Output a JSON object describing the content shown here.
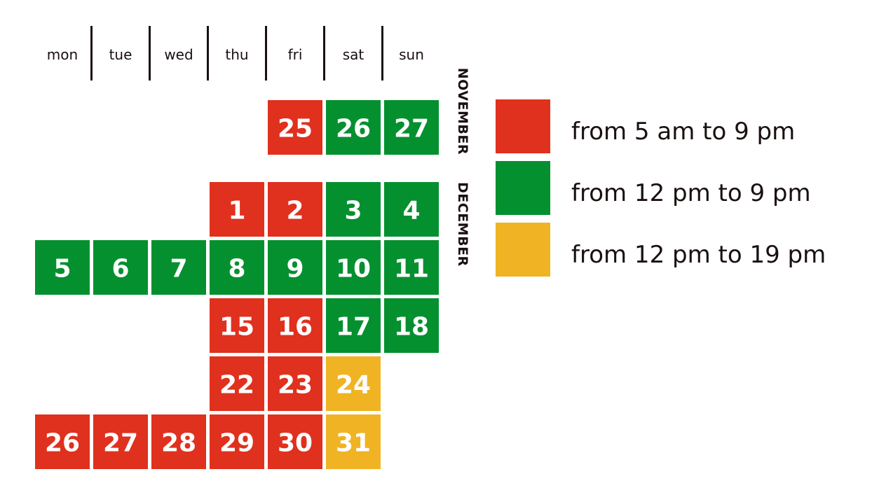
{
  "weekdays": [
    "mon",
    "tue",
    "wed",
    "thu",
    "fri",
    "sat",
    "sun"
  ],
  "months": [
    {
      "name": "NOVEMBER",
      "weeks": [
        [
          null,
          null,
          null,
          null,
          {
            "day": 25,
            "color": "#e0301e"
          },
          {
            "day": 26,
            "color": "#05902f"
          },
          {
            "day": 27,
            "color": "#05902f"
          }
        ]
      ]
    },
    {
      "name": "DECEMBER",
      "weeks": [
        [
          null,
          null,
          null,
          {
            "day": 1,
            "color": "#e0301e"
          },
          {
            "day": 2,
            "color": "#e0301e"
          },
          {
            "day": 3,
            "color": "#05902f"
          },
          {
            "day": 4,
            "color": "#05902f"
          }
        ],
        [
          {
            "day": 5,
            "color": "#05902f"
          },
          {
            "day": 6,
            "color": "#05902f"
          },
          {
            "day": 7,
            "color": "#05902f"
          },
          {
            "day": 8,
            "color": "#05902f"
          },
          {
            "day": 9,
            "color": "#05902f"
          },
          {
            "day": 10,
            "color": "#05902f"
          },
          {
            "day": 11,
            "color": "#05902f"
          }
        ],
        [
          null,
          null,
          null,
          {
            "day": 15,
            "color": "#e0301e"
          },
          {
            "day": 16,
            "color": "#e0301e"
          },
          {
            "day": 17,
            "color": "#05902f"
          },
          {
            "day": 18,
            "color": "#05902f"
          }
        ],
        [
          null,
          null,
          null,
          {
            "day": 22,
            "color": "#e0301e"
          },
          {
            "day": 23,
            "color": "#e0301e"
          },
          {
            "day": 24,
            "color": "#f0b323"
          },
          null
        ],
        [
          {
            "day": 26,
            "color": "#e0301e"
          },
          {
            "day": 27,
            "color": "#e0301e"
          },
          {
            "day": 28,
            "color": "#e0301e"
          },
          {
            "day": 29,
            "color": "#e0301e"
          },
          {
            "day": 30,
            "color": "#e0301e"
          },
          {
            "day": 31,
            "color": "#f0b323"
          },
          null
        ]
      ]
    }
  ],
  "legend": [
    {
      "label": "from 5 am to 9 pm",
      "color": "#e0301e"
    },
    {
      "label": "from 12 pm to 9 pm",
      "color": "#05902f"
    },
    {
      "label": "from 12 pm to 19 pm",
      "color": "#f0b323"
    }
  ]
}
